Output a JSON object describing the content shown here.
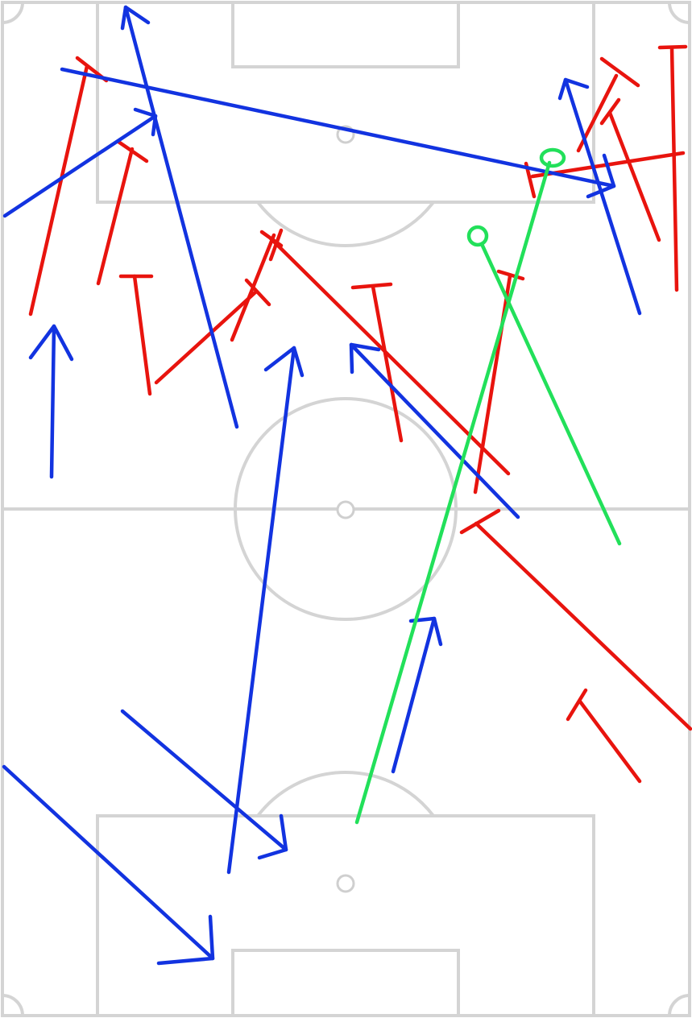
{
  "colors": {
    "blue": "#1233e0",
    "red": "#e8140e",
    "green": "#22e05a",
    "pitch": "#d4d4d4"
  },
  "diagram": {
    "kind": "football-tactics-board",
    "orientation": "vertical"
  }
}
